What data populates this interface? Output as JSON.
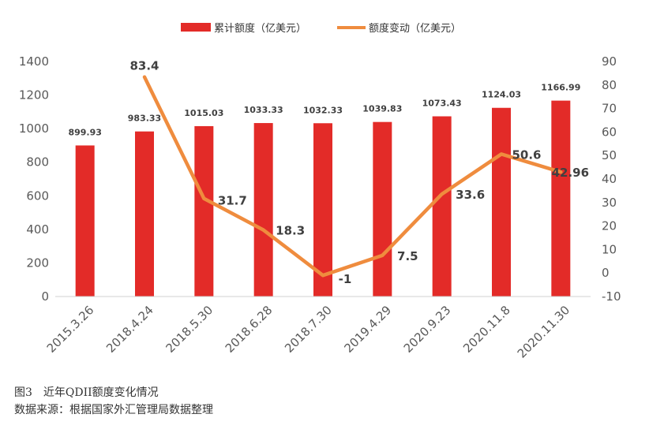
{
  "chart_data": {
    "type": "bar+line",
    "categories": [
      "2015.3.26",
      "2018.4.24",
      "2018.5.30",
      "2018.6.28",
      "2018.7.30",
      "2019.4.29",
      "2020.9.23",
      "2020.11.8",
      "2020.11.30"
    ],
    "series": [
      {
        "name": "累计额度（亿美元）",
        "type": "bar",
        "axis": "left",
        "values": [
          899.93,
          983.33,
          1015.03,
          1033.33,
          1032.33,
          1039.83,
          1073.43,
          1124.03,
          1166.99
        ],
        "labels": [
          "899.93",
          "983.33",
          "1015.03",
          "1033.33",
          "1032.33",
          "1039.83",
          "1073.43",
          "1124.03",
          "1166.99"
        ]
      },
      {
        "name": "额度变动（亿美元）",
        "type": "line",
        "axis": "right",
        "values": [
          null,
          83.4,
          31.7,
          18.3,
          -1,
          7.5,
          33.6,
          50.6,
          42.96
        ],
        "labels": [
          "",
          "83.4",
          "31.7",
          "18.3",
          "-1",
          "7.5",
          "33.6",
          "50.6",
          "42.96"
        ]
      }
    ],
    "left_axis": {
      "ylim": [
        0,
        1400
      ],
      "ticks": [
        "0",
        "200",
        "400",
        "600",
        "800",
        "1000",
        "1200",
        "1400"
      ]
    },
    "right_axis": {
      "ylim": [
        -10,
        90
      ],
      "ticks": [
        "-10",
        "0",
        "10",
        "20",
        "30",
        "40",
        "50",
        "60",
        "70",
        "80",
        "90"
      ]
    },
    "legend_position": "top",
    "colors": {
      "bar": "#e32b28",
      "line": "#ef8c3e",
      "axis_text": "#595959",
      "label_text": "#404040"
    }
  },
  "caption": {
    "figure_label": "图3　近年QDII额度变化情况",
    "source": "数据来源：根据国家外汇管理局数据整理"
  }
}
